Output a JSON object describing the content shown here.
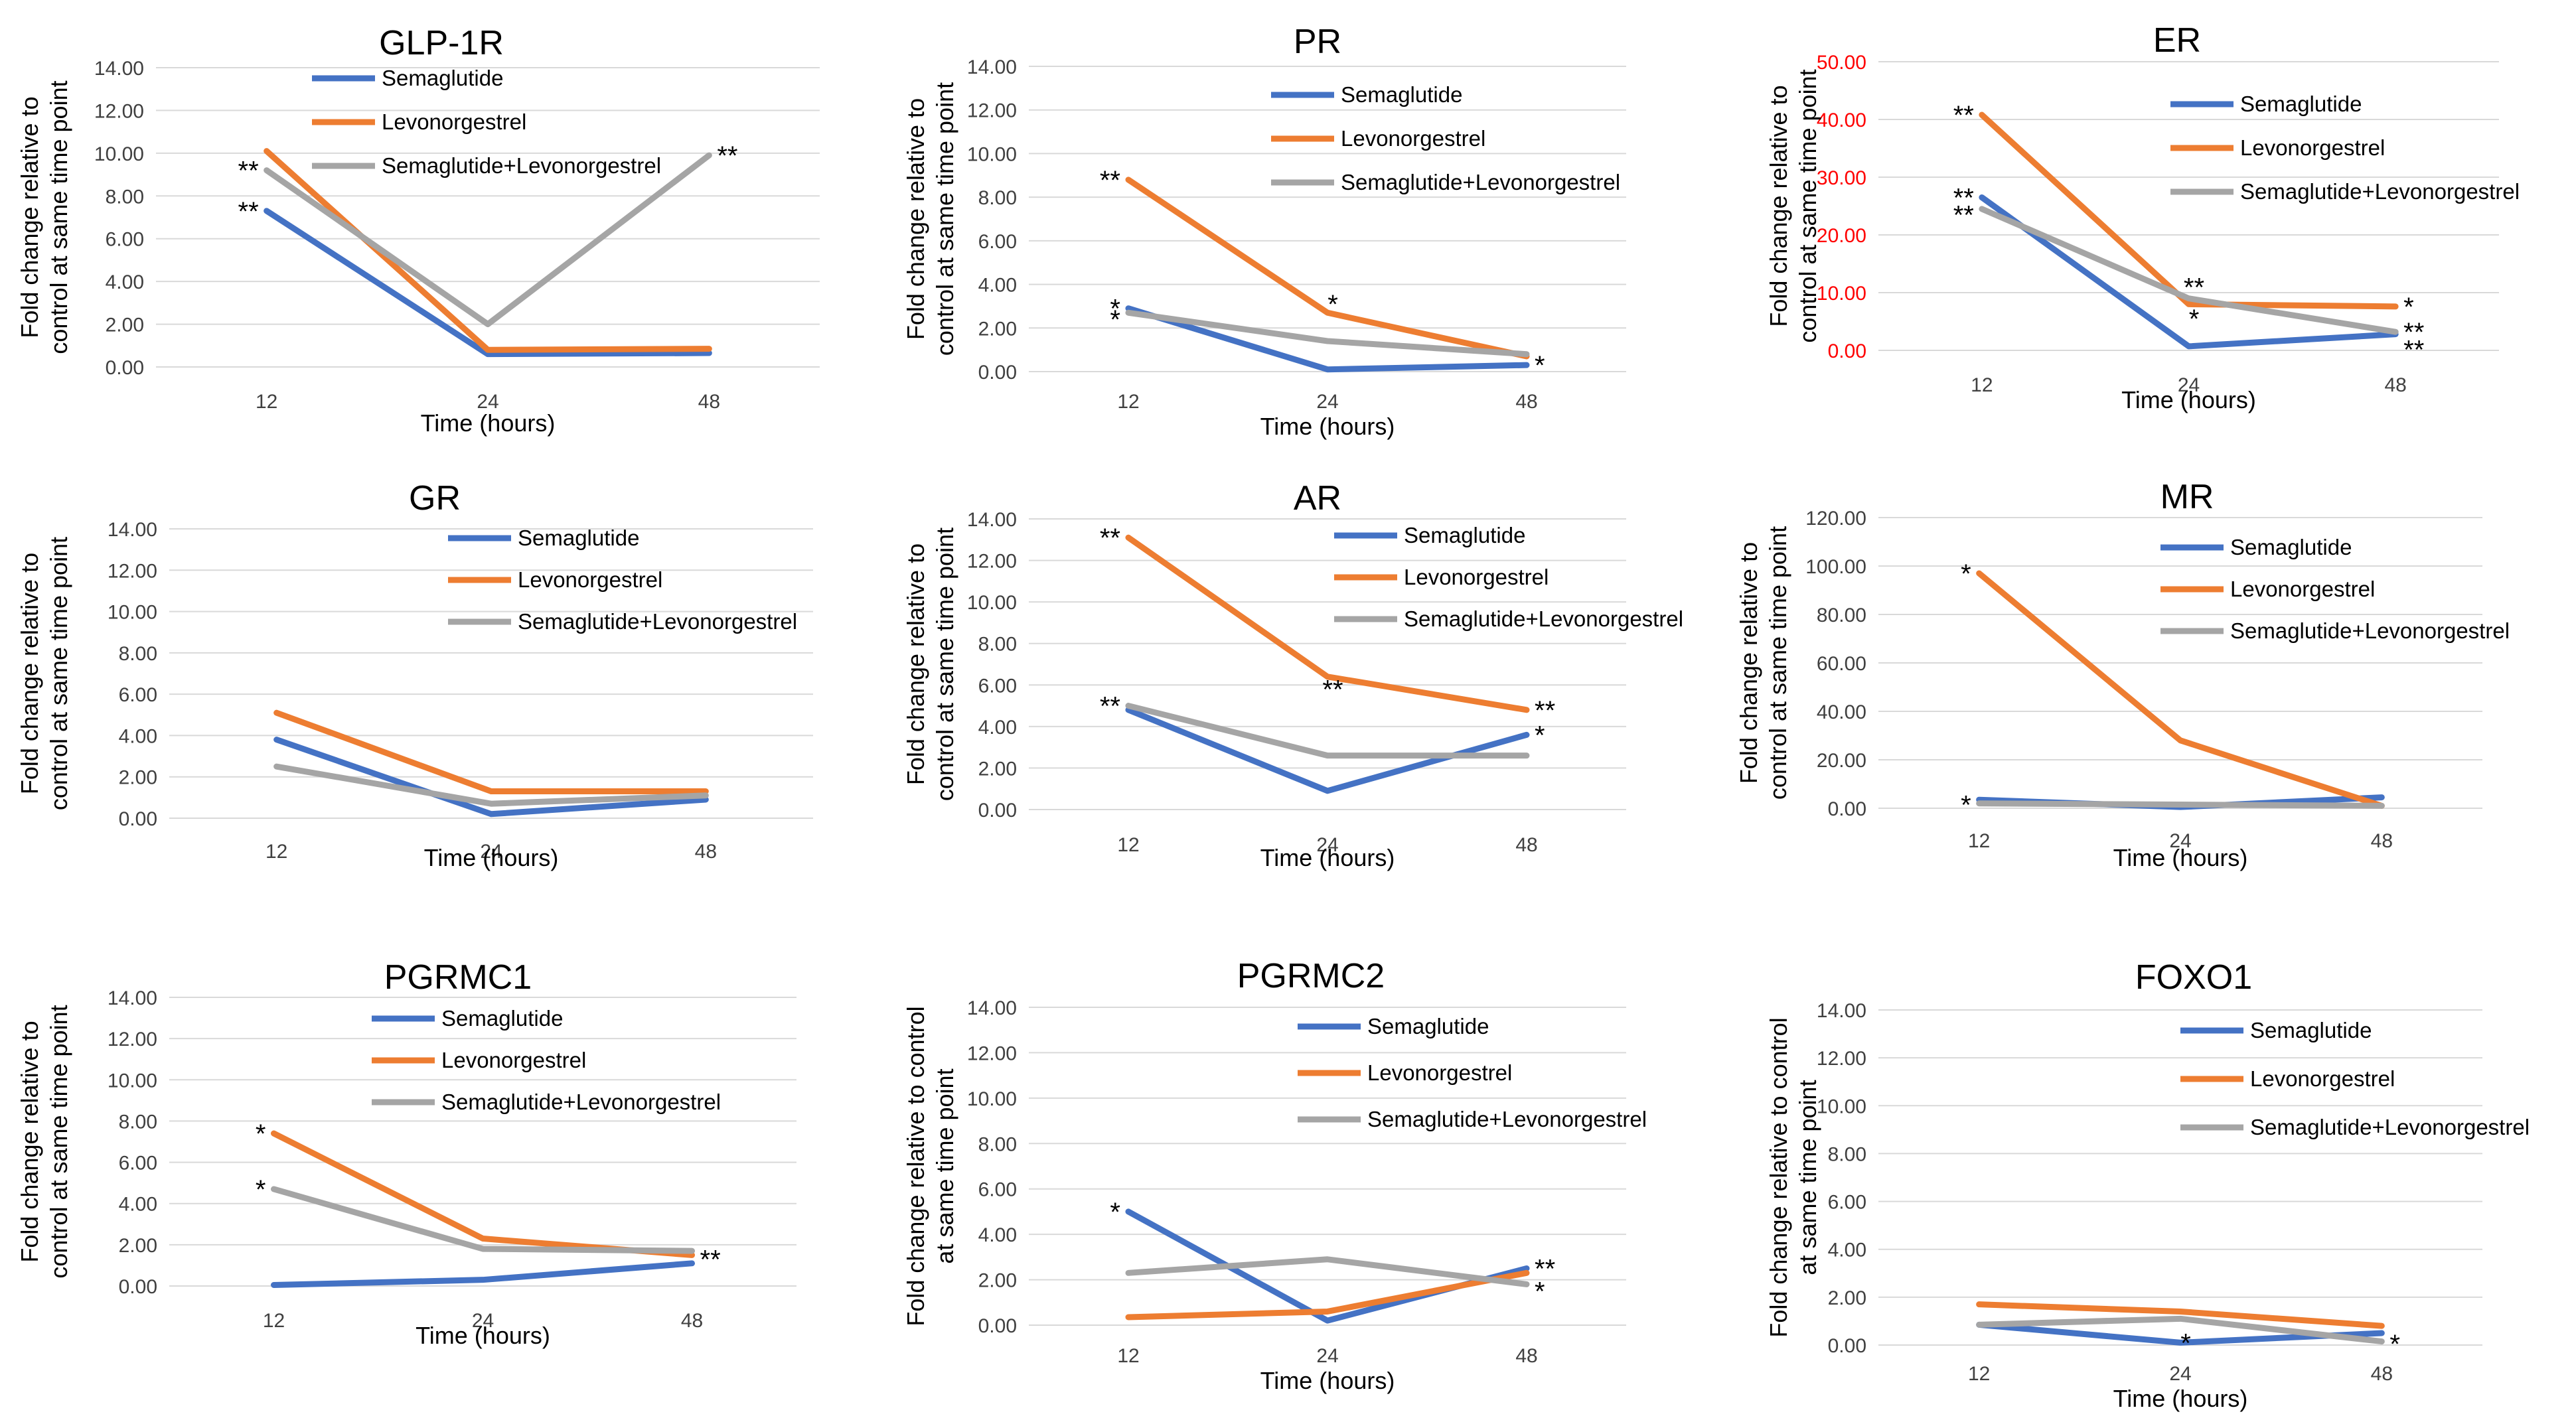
{
  "colors": {
    "Semaglutide": "#4472c4",
    "Levonorgestrel": "#ed7d31",
    "Semaglutide+Levonorgestrel": "#a5a5a5",
    "grid": "#d9d9d9",
    "red_axis": "#ff0000"
  },
  "chart_data": [
    {
      "type": "line",
      "title": "GLP-1R",
      "categories": [
        "12",
        "24",
        "48"
      ],
      "xlabel": "Time (hours)",
      "ylabel": [
        "Fold change relative to",
        "control at same time point"
      ],
      "yticks": [
        "0.00",
        "2.00",
        "4.00",
        "6.00",
        "8.00",
        "10.00",
        "12.00",
        "14.00"
      ],
      "ylim": [
        0,
        14
      ],
      "y_axis_color": "default",
      "series": [
        {
          "name": "Semaglutide",
          "values": [
            7.3,
            0.6,
            0.65
          ]
        },
        {
          "name": "Levonorgestrel",
          "values": [
            10.1,
            0.8,
            0.85
          ]
        },
        {
          "name": "Semaglutide+Levonorgestrel",
          "values": [
            9.2,
            2.0,
            9.9
          ]
        }
      ],
      "annotations": [
        {
          "text": "**",
          "point": 0,
          "value": 9.2
        },
        {
          "text": "**",
          "point": 0,
          "value": 7.3
        },
        {
          "text": "**",
          "point": 2,
          "value": 9.9
        }
      ]
    },
    {
      "type": "line",
      "title": "PR",
      "categories": [
        "12",
        "24",
        "48"
      ],
      "xlabel": "Time (hours)",
      "ylabel": [
        "Fold change relative to",
        "control at same time point"
      ],
      "yticks": [
        "0.00",
        "2.00",
        "4.00",
        "6.00",
        "8.00",
        "10.00",
        "12.00",
        "14.00"
      ],
      "ylim": [
        0,
        14
      ],
      "y_axis_color": "default",
      "series": [
        {
          "name": "Semaglutide",
          "values": [
            2.9,
            0.1,
            0.3
          ]
        },
        {
          "name": "Levonorgestrel",
          "values": [
            8.8,
            2.7,
            0.7
          ]
        },
        {
          "name": "Semaglutide+Levonorgestrel",
          "values": [
            2.7,
            1.4,
            0.8
          ]
        }
      ],
      "annotations": [
        {
          "text": "**",
          "point": 0,
          "value": 8.8
        },
        {
          "text": "*",
          "point": 0,
          "value": 2.9
        },
        {
          "text": "*",
          "point": 0,
          "value": 2.4
        },
        {
          "text": "*",
          "point": 1,
          "value": 3.1
        },
        {
          "text": "*",
          "point": 2,
          "value": 0.3
        }
      ]
    },
    {
      "type": "line",
      "title": "ER",
      "categories": [
        "12",
        "24",
        "48"
      ],
      "xlabel": "Time (hours)",
      "ylabel": [
        "Fold change relative to",
        "control at same time point"
      ],
      "yticks": [
        "0.00",
        "10.00",
        "20.00",
        "30.00",
        "40.00",
        "50.00"
      ],
      "ylim": [
        0,
        50
      ],
      "y_axis_color": "red",
      "series": [
        {
          "name": "Semaglutide",
          "values": [
            26.5,
            0.7,
            2.8
          ]
        },
        {
          "name": "Levonorgestrel",
          "values": [
            40.8,
            8.0,
            7.6
          ]
        },
        {
          "name": "Semaglutide+Levonorgestrel",
          "values": [
            24.5,
            9.0,
            3.2
          ]
        }
      ],
      "annotations": [
        {
          "text": "**",
          "point": 0,
          "value": 40.8
        },
        {
          "text": "**",
          "point": 0,
          "value": 26.5
        },
        {
          "text": "**",
          "point": 0,
          "value": 23.5
        },
        {
          "text": "**",
          "point": 1,
          "value": 11.0
        },
        {
          "text": "*",
          "point": 1,
          "value": 5.5
        },
        {
          "text": "*",
          "point": 2,
          "value": 7.6
        },
        {
          "text": "**",
          "point": 2,
          "value": 3.2
        },
        {
          "text": "**",
          "point": 2,
          "value": 0.2
        }
      ]
    },
    {
      "type": "line",
      "title": "GR",
      "categories": [
        "12",
        "24",
        "48"
      ],
      "xlabel": "Time (hours)",
      "ylabel": [
        "Fold change relative to",
        "control at same time point"
      ],
      "yticks": [
        "0.00",
        "2.00",
        "4.00",
        "6.00",
        "8.00",
        "10.00",
        "12.00",
        "14.00"
      ],
      "ylim": [
        0,
        14
      ],
      "y_axis_color": "default",
      "series": [
        {
          "name": "Semaglutide",
          "values": [
            3.8,
            0.2,
            0.9
          ]
        },
        {
          "name": "Levonorgestrel",
          "values": [
            5.1,
            1.3,
            1.3
          ]
        },
        {
          "name": "Semaglutide+Levonorgestrel",
          "values": [
            2.5,
            0.7,
            1.1
          ]
        }
      ],
      "annotations": []
    },
    {
      "type": "line",
      "title": "AR",
      "categories": [
        "12",
        "24",
        "48"
      ],
      "xlabel": "Time (hours)",
      "ylabel": [
        "Fold change relative to",
        "control at same time point"
      ],
      "yticks": [
        "0.00",
        "2.00",
        "4.00",
        "6.00",
        "8.00",
        "10.00",
        "12.00",
        "14.00"
      ],
      "ylim": [
        0,
        14
      ],
      "y_axis_color": "default",
      "series": [
        {
          "name": "Semaglutide",
          "values": [
            4.8,
            0.9,
            3.6
          ]
        },
        {
          "name": "Levonorgestrel",
          "values": [
            13.1,
            6.4,
            4.8
          ]
        },
        {
          "name": "Semaglutide+Levonorgestrel",
          "values": [
            5.0,
            2.6,
            2.6
          ]
        }
      ],
      "annotations": [
        {
          "text": "**",
          "point": 0,
          "value": 13.1
        },
        {
          "text": "**",
          "point": 0,
          "value": 5.0
        },
        {
          "text": "**",
          "point": 1,
          "value": 5.8
        },
        {
          "text": "**",
          "point": 2,
          "value": 4.8
        },
        {
          "text": "*",
          "point": 2,
          "value": 3.6
        }
      ]
    },
    {
      "type": "line",
      "title": "MR",
      "categories": [
        "12",
        "24",
        "48"
      ],
      "xlabel": "Time (hours)",
      "ylabel": [
        "Fold change relative to",
        "control at same time point"
      ],
      "yticks": [
        "0.00",
        "20.00",
        "40.00",
        "60.00",
        "80.00",
        "100.00",
        "120.00"
      ],
      "ylim": [
        0,
        120
      ],
      "y_axis_color": "default",
      "series": [
        {
          "name": "Semaglutide",
          "values": [
            3.5,
            0.5,
            4.5
          ]
        },
        {
          "name": "Levonorgestrel",
          "values": [
            97,
            28,
            1
          ]
        },
        {
          "name": "Semaglutide+Levonorgestrel",
          "values": [
            2.0,
            1.5,
            1.0
          ]
        }
      ],
      "annotations": [
        {
          "text": "*",
          "point": 0,
          "value": 97
        },
        {
          "text": "*",
          "point": 0,
          "value": 1.5
        }
      ]
    },
    {
      "type": "line",
      "title": "PGRMC1",
      "categories": [
        "12",
        "24",
        "48"
      ],
      "xlabel": "Time (hours)",
      "ylabel": [
        "Fold change relative to",
        "control at same time point"
      ],
      "yticks": [
        "0.00",
        "2.00",
        "4.00",
        "6.00",
        "8.00",
        "10.00",
        "12.00",
        "14.00"
      ],
      "ylim": [
        0,
        14
      ],
      "y_axis_color": "default",
      "series": [
        {
          "name": "Semaglutide",
          "values": [
            0.05,
            0.3,
            1.1
          ]
        },
        {
          "name": "Levonorgestrel",
          "values": [
            7.4,
            2.3,
            1.5
          ]
        },
        {
          "name": "Semaglutide+Levonorgestrel",
          "values": [
            4.7,
            1.8,
            1.7
          ]
        }
      ],
      "annotations": [
        {
          "text": "*",
          "point": 0,
          "value": 7.4
        },
        {
          "text": "*",
          "point": 0,
          "value": 4.7
        },
        {
          "text": "**",
          "point": 2,
          "value": 1.3
        }
      ]
    },
    {
      "type": "line",
      "title": "PGRMC2",
      "categories": [
        "12",
        "24",
        "48"
      ],
      "xlabel": "Time (hours)",
      "ylabel": [
        "Fold change relative to control",
        "at same time point"
      ],
      "yticks": [
        "0.00",
        "2.00",
        "4.00",
        "6.00",
        "8.00",
        "10.00",
        "12.00",
        "14.00"
      ],
      "ylim": [
        0,
        14
      ],
      "y_axis_color": "default",
      "series": [
        {
          "name": "Semaglutide",
          "values": [
            5.0,
            0.2,
            2.5
          ]
        },
        {
          "name": "Levonorgestrel",
          "values": [
            0.35,
            0.6,
            2.3
          ]
        },
        {
          "name": "Semaglutide+Levonorgestrel",
          "values": [
            2.3,
            2.9,
            1.8
          ]
        }
      ],
      "annotations": [
        {
          "text": "*",
          "point": 0,
          "value": 5.0
        },
        {
          "text": "**",
          "point": 2,
          "value": 2.5
        },
        {
          "text": "*",
          "point": 2,
          "value": 1.5
        }
      ]
    },
    {
      "type": "line",
      "title": "FOXO1",
      "categories": [
        "12",
        "24",
        "48"
      ],
      "xlabel": "Time (hours)",
      "ylabel": [
        "Fold change relative to control",
        "at same time point"
      ],
      "yticks": [
        "0.00",
        "2.00",
        "4.00",
        "6.00",
        "8.00",
        "10.00",
        "12.00",
        "14.00"
      ],
      "ylim": [
        0,
        14
      ],
      "y_axis_color": "default",
      "series": [
        {
          "name": "Semaglutide",
          "values": [
            0.85,
            0.1,
            0.5
          ]
        },
        {
          "name": "Levonorgestrel",
          "values": [
            1.7,
            1.4,
            0.8
          ]
        },
        {
          "name": "Semaglutide+Levonorgestrel",
          "values": [
            0.85,
            1.1,
            0.15
          ]
        }
      ],
      "annotations": [
        {
          "text": "*",
          "point": 1,
          "value": 0.1
        },
        {
          "text": "*",
          "point": 2,
          "value": 0.05
        }
      ]
    }
  ]
}
